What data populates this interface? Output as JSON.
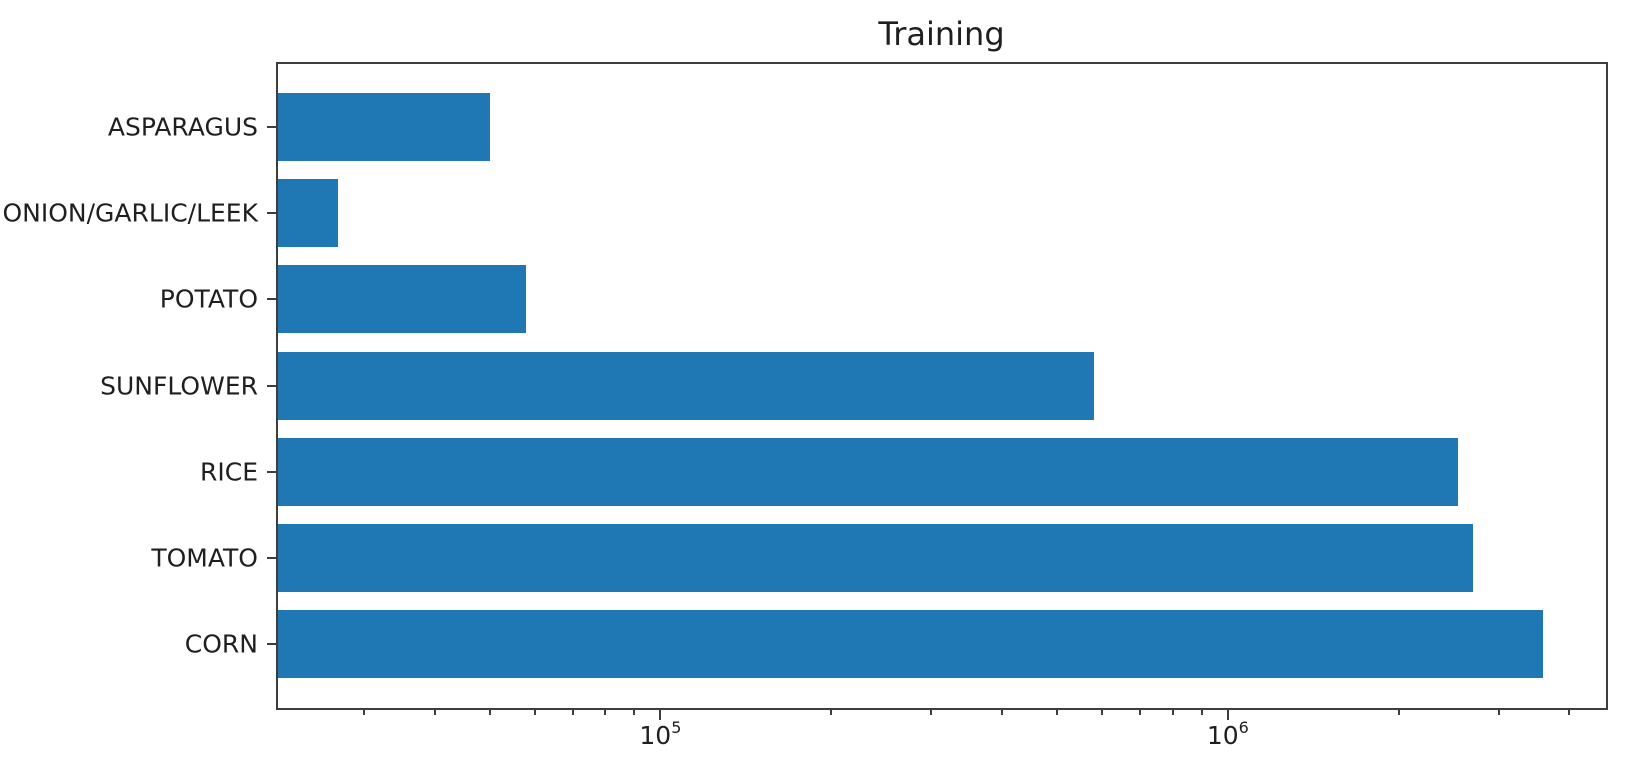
{
  "figure": {
    "title": "Training"
  },
  "chart_data": {
    "type": "bar",
    "orientation": "horizontal",
    "title": "Training",
    "xlabel": "",
    "ylabel": "",
    "grid": false,
    "legend": false,
    "xscale": "log",
    "xlim": [
      21100,
      4640000
    ],
    "bar_color": "#1f77b4",
    "axis_color": "#3d3d3d",
    "text_color": "#1f1f1f",
    "categories_top_to_bottom": [
      "ASPARAGUS",
      "ONION/GARLIC/LEEK",
      "POTATO",
      "SUNFLOWER",
      "RICE",
      "TOMATO",
      "CORN"
    ],
    "values_top_to_bottom": [
      50000,
      27000,
      58000,
      580000,
      2550000,
      2700000,
      3600000
    ],
    "x_major_ticks": [
      {
        "value": 100000,
        "base": "10",
        "exp": "5"
      },
      {
        "value": 1000000,
        "base": "10",
        "exp": "6"
      }
    ],
    "x_minor_ticks": [
      30000,
      40000,
      50000,
      60000,
      70000,
      80000,
      90000,
      200000,
      300000,
      400000,
      500000,
      600000,
      700000,
      800000,
      900000,
      2000000,
      3000000,
      4000000
    ]
  }
}
